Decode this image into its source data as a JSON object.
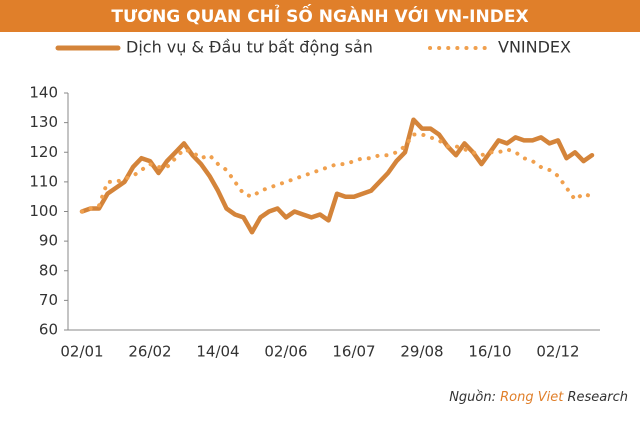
{
  "chart_data": {
    "type": "line",
    "title": "TƯƠNG QUAN CHỈ SỐ NGÀNH VỚI VN-INDEX",
    "categories": [
      "02/01",
      null,
      null,
      null,
      null,
      null,
      null,
      null,
      "26/02",
      null,
      null,
      null,
      null,
      null,
      null,
      null,
      "14/04",
      null,
      null,
      null,
      null,
      null,
      null,
      null,
      "02/06",
      null,
      null,
      null,
      null,
      null,
      null,
      null,
      "16/07",
      null,
      null,
      null,
      null,
      null,
      null,
      null,
      "29/08",
      null,
      null,
      null,
      null,
      null,
      null,
      null,
      "16/10",
      null,
      null,
      null,
      null,
      null,
      null,
      null,
      "02/12",
      null,
      null,
      null,
      null
    ],
    "series": [
      {
        "name": "Dịch vụ & Đầu tư bất động sản",
        "color": "#d4843a",
        "style": "solid",
        "values": [
          100,
          101,
          101,
          106,
          108,
          110,
          115,
          118,
          117,
          113,
          117,
          120,
          123,
          119,
          116,
          112,
          107,
          101,
          99,
          98,
          93,
          98,
          100,
          101,
          98,
          100,
          99,
          98,
          99,
          97,
          106,
          105,
          105,
          106,
          107,
          110,
          113,
          117,
          120,
          131,
          128,
          128,
          126,
          122,
          119,
          123,
          120,
          116,
          120,
          124,
          123,
          125,
          124,
          124,
          125,
          123,
          124,
          118,
          120,
          117,
          119
        ]
      },
      {
        "name": "VNINDEX",
        "color": "#f0a04e",
        "style": "dotted",
        "values": [
          100,
          101,
          102,
          110,
          110,
          111,
          112,
          114,
          116,
          115,
          115,
          118,
          121,
          120,
          118,
          119,
          116,
          114,
          110,
          106,
          105,
          107,
          108,
          109,
          110,
          111,
          112,
          113,
          114,
          115,
          116,
          116,
          117,
          118,
          118,
          119,
          119,
          120,
          122,
          126,
          126,
          125,
          124,
          122,
          122,
          121,
          120,
          119,
          120,
          120,
          121,
          120,
          118,
          117,
          115,
          114,
          112,
          108,
          104,
          106,
          105
        ]
      }
    ],
    "ylim": [
      60,
      140
    ],
    "yticks": [
      60,
      70,
      80,
      90,
      100,
      110,
      120,
      130,
      140
    ],
    "grid": false,
    "source": {
      "prefix": "Nguồn:",
      "brand": "Rong Viet",
      "rest": "Research"
    }
  }
}
